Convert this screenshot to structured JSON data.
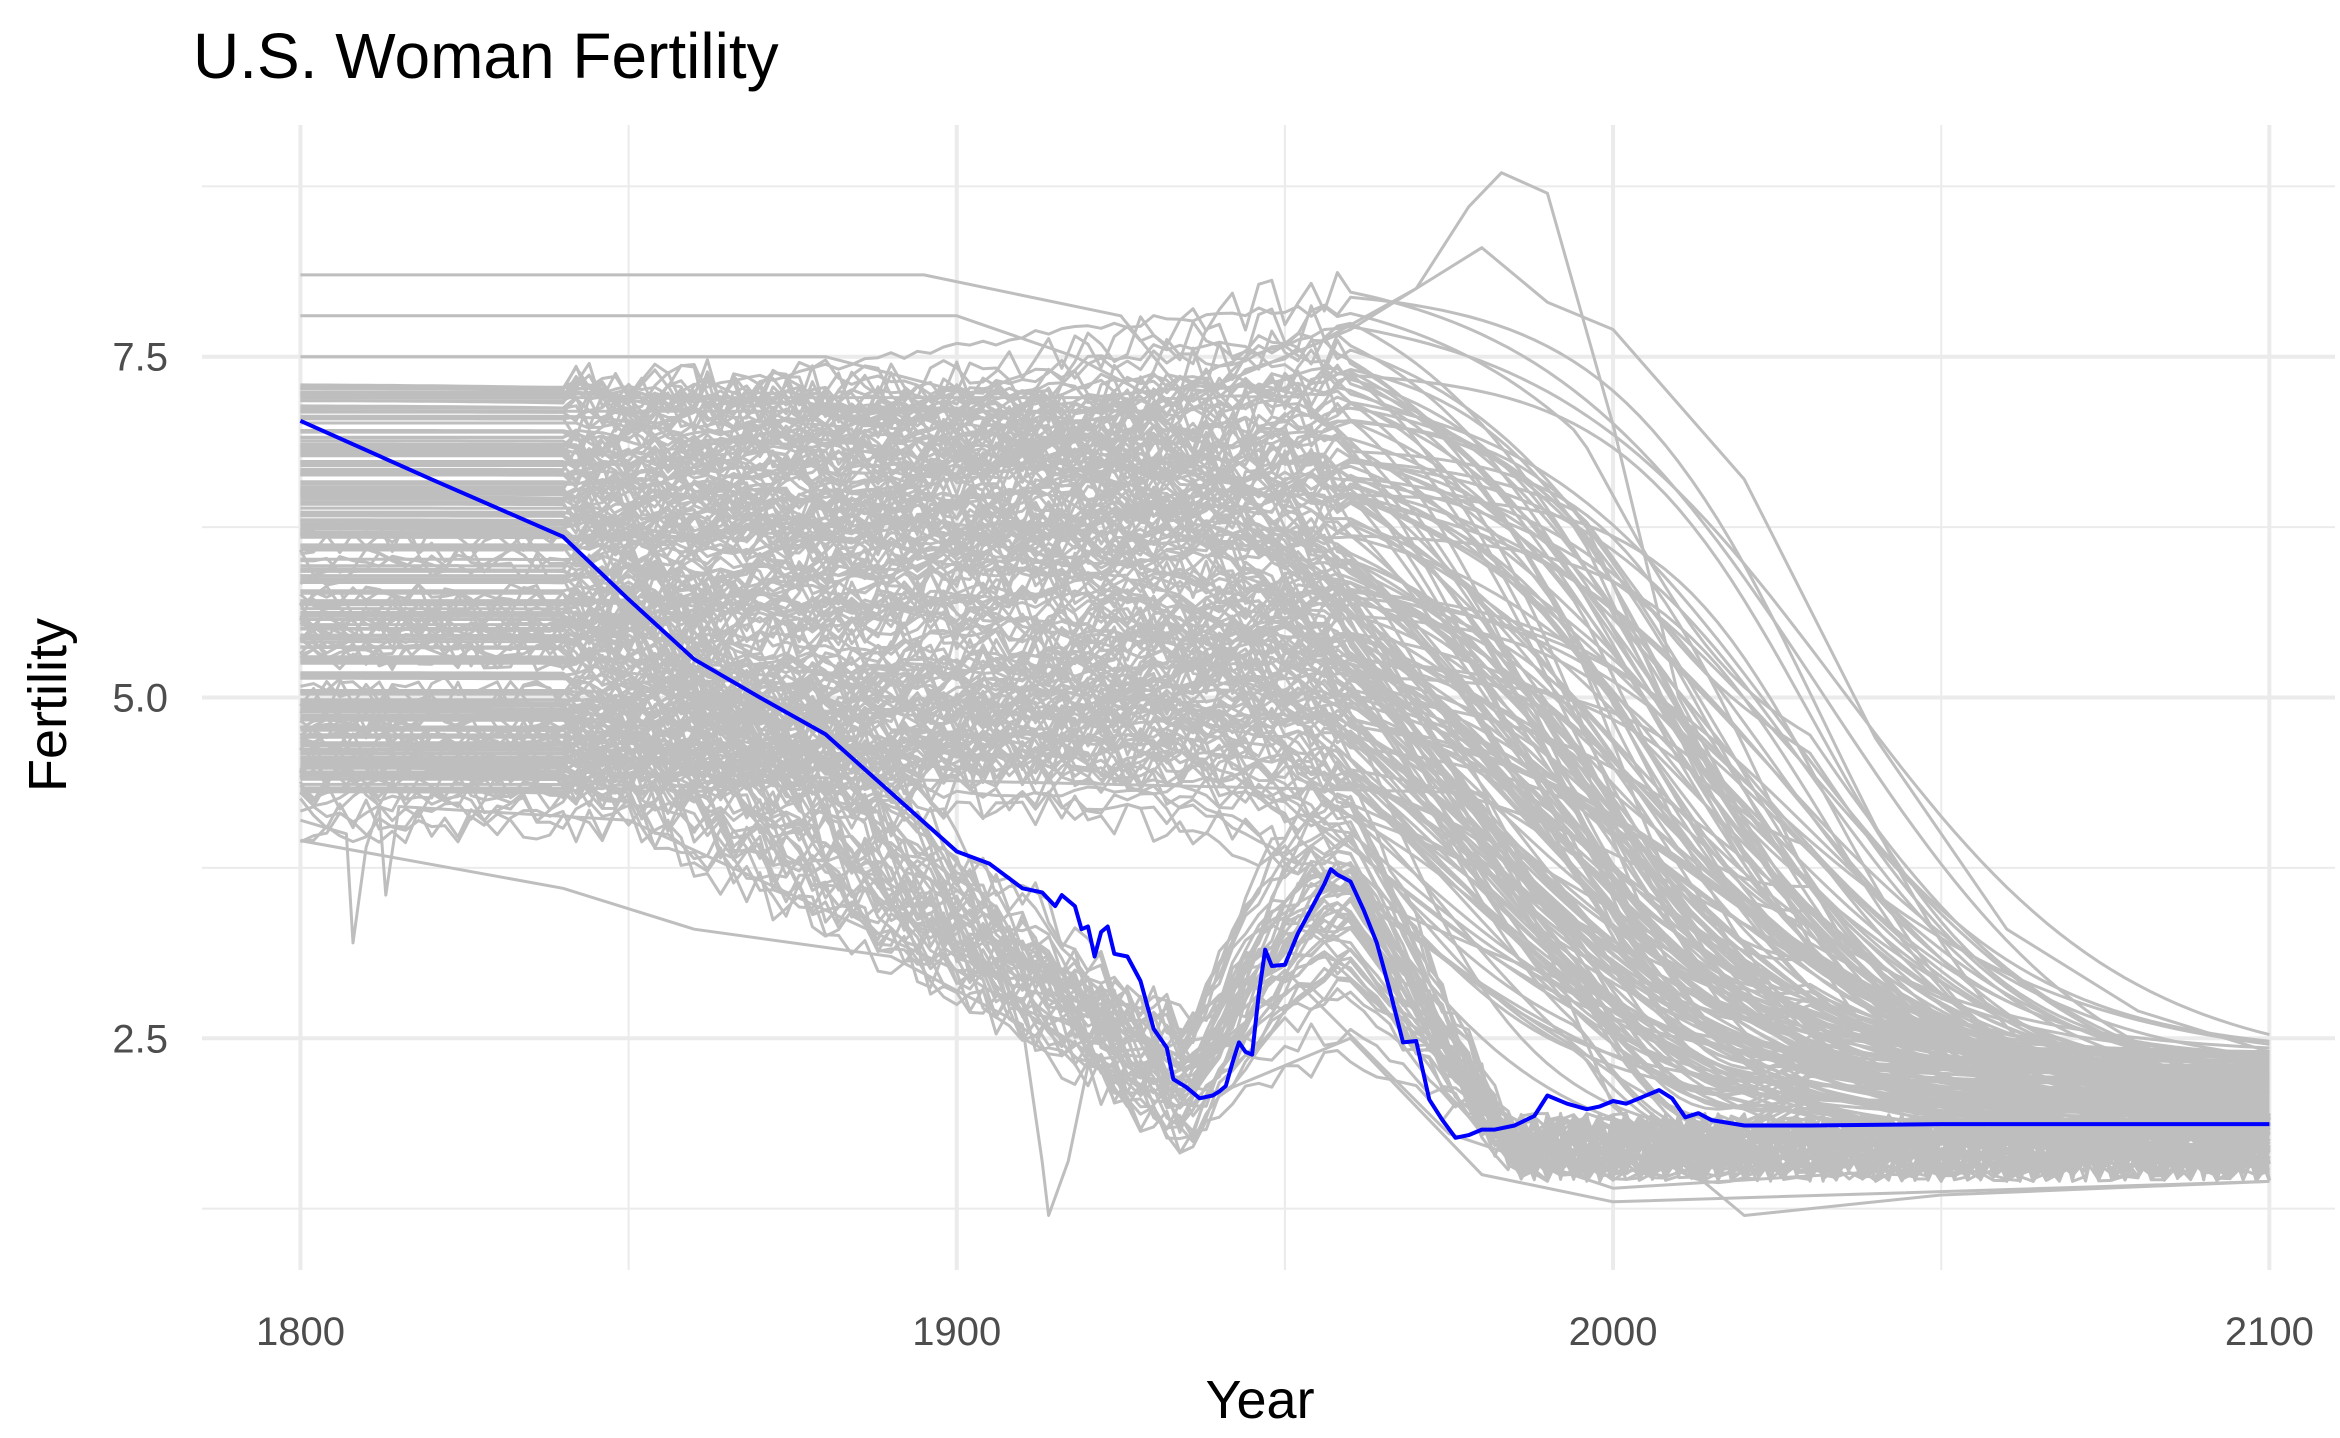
{
  "chart_data": {
    "type": "line",
    "title": "U.S. Woman Fertility",
    "xlabel": "Year",
    "ylabel": "Fertility",
    "xlim": [
      1785,
      2110
    ],
    "ylim": [
      0.8,
      9.2
    ],
    "x_ticks": [
      1800,
      1900,
      2000,
      2100
    ],
    "y_ticks": [
      2.5,
      5.0,
      7.5
    ],
    "x_tick_labels": [
      "1800",
      "1900",
      "2000",
      "2100"
    ],
    "y_tick_labels": [
      "2.5",
      "5.0",
      "7.5"
    ],
    "grid": true,
    "background_series_color": "#bebebe",
    "highlight_color": "#0000ff",
    "grid_color": "#ebebeb",
    "highlight_series": {
      "name": "",
      "points": [
        [
          1800,
          7.03
        ],
        [
          1820,
          6.6
        ],
        [
          1840,
          6.18
        ],
        [
          1850,
          5.72
        ],
        [
          1860,
          5.28
        ],
        [
          1870,
          5.0
        ],
        [
          1880,
          4.73
        ],
        [
          1890,
          4.3
        ],
        [
          1900,
          3.87
        ],
        [
          1905,
          3.78
        ],
        [
          1910,
          3.6
        ],
        [
          1913,
          3.57
        ],
        [
          1915,
          3.47
        ],
        [
          1916,
          3.55
        ],
        [
          1918,
          3.47
        ],
        [
          1919,
          3.3
        ],
        [
          1920,
          3.32
        ],
        [
          1921,
          3.1
        ],
        [
          1922,
          3.28
        ],
        [
          1923,
          3.32
        ],
        [
          1924,
          3.12
        ],
        [
          1926,
          3.1
        ],
        [
          1928,
          2.92
        ],
        [
          1930,
          2.57
        ],
        [
          1932,
          2.43
        ],
        [
          1933,
          2.2
        ],
        [
          1935,
          2.14
        ],
        [
          1937,
          2.06
        ],
        [
          1939,
          2.08
        ],
        [
          1940,
          2.11
        ],
        [
          1941,
          2.15
        ],
        [
          1942,
          2.32
        ],
        [
          1943,
          2.47
        ],
        [
          1944,
          2.4
        ],
        [
          1945,
          2.38
        ],
        [
          1946,
          2.82
        ],
        [
          1947,
          3.15
        ],
        [
          1948,
          3.03
        ],
        [
          1950,
          3.04
        ],
        [
          1952,
          3.27
        ],
        [
          1954,
          3.45
        ],
        [
          1956,
          3.63
        ],
        [
          1957,
          3.74
        ],
        [
          1958,
          3.7
        ],
        [
          1960,
          3.65
        ],
        [
          1962,
          3.44
        ],
        [
          1964,
          3.2
        ],
        [
          1966,
          2.85
        ],
        [
          1968,
          2.47
        ],
        [
          1970,
          2.48
        ],
        [
          1972,
          2.05
        ],
        [
          1974,
          1.9
        ],
        [
          1976,
          1.77
        ],
        [
          1978,
          1.79
        ],
        [
          1980,
          1.83
        ],
        [
          1982,
          1.83
        ],
        [
          1985,
          1.86
        ],
        [
          1988,
          1.93
        ],
        [
          1990,
          2.08
        ],
        [
          1993,
          2.02
        ],
        [
          1996,
          1.98
        ],
        [
          1998,
          2.0
        ],
        [
          2000,
          2.04
        ],
        [
          2002,
          2.02
        ],
        [
          2004,
          2.06
        ],
        [
          2007,
          2.12
        ],
        [
          2009,
          2.06
        ],
        [
          2011,
          1.92
        ],
        [
          2013,
          1.95
        ],
        [
          2015,
          1.9
        ],
        [
          2020,
          1.86
        ],
        [
          2030,
          1.86
        ],
        [
          2050,
          1.87
        ],
        [
          2070,
          1.87
        ],
        [
          2100,
          1.87
        ]
      ]
    }
  }
}
